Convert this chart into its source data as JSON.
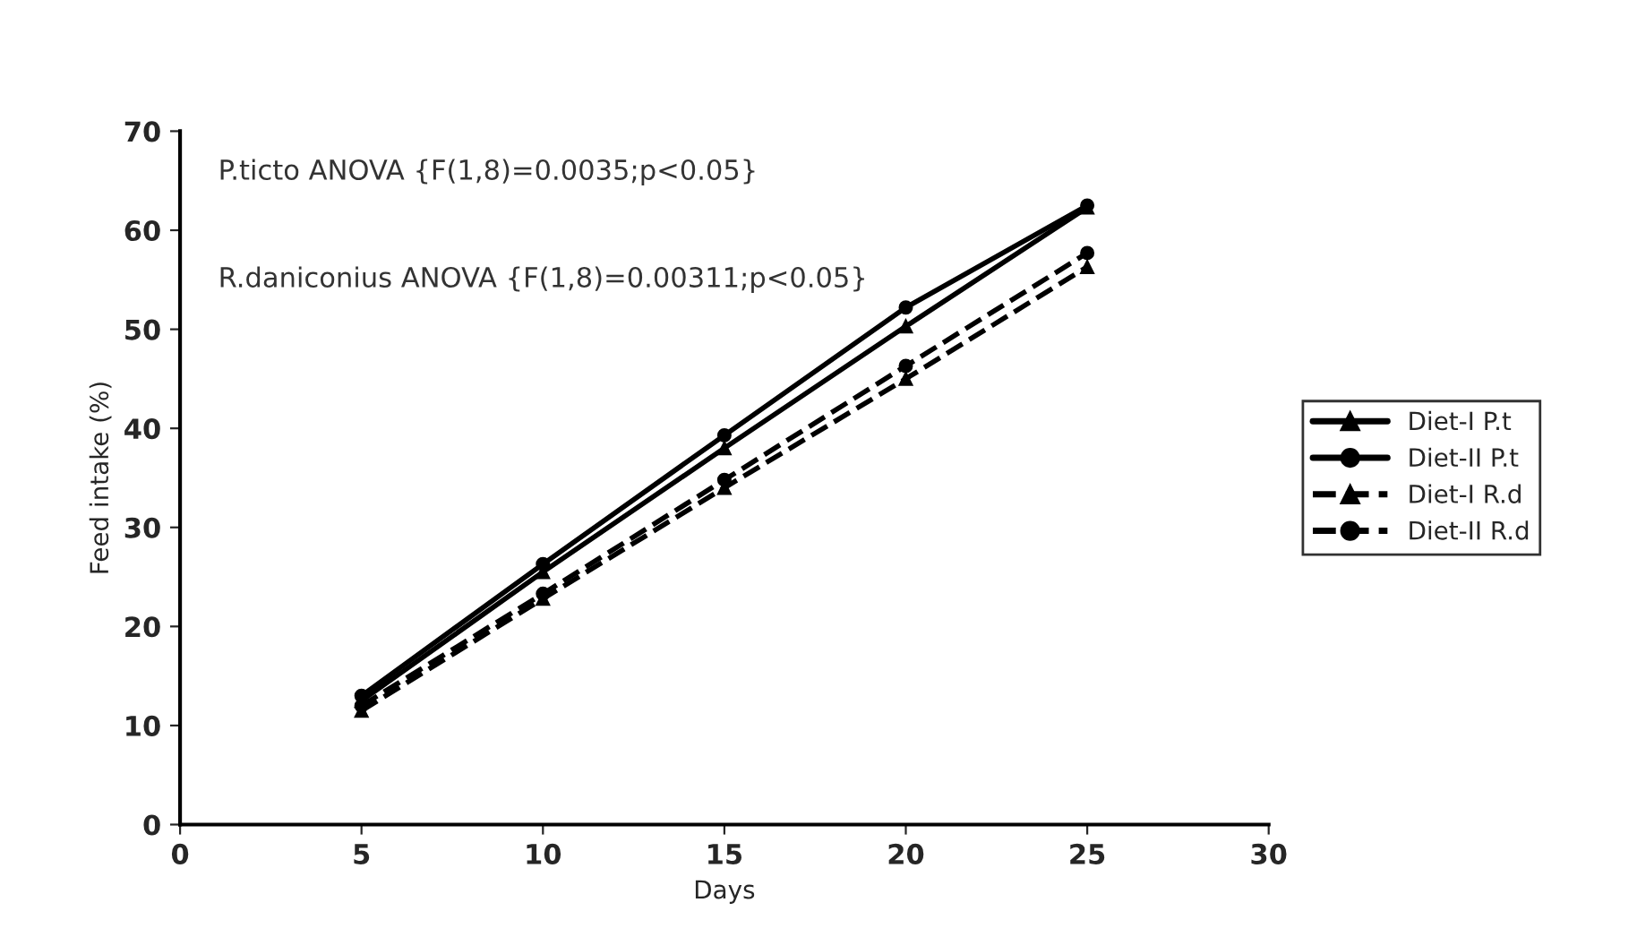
{
  "chart_data": {
    "type": "line",
    "xlabel": "Days",
    "ylabel": "Feed intake (%)",
    "x": [
      5,
      10,
      15,
      20,
      25
    ],
    "series": [
      {
        "name": "Diet-I P.t",
        "color": "#000000",
        "marker": "triangle",
        "line_style": "solid",
        "values": [
          12.5,
          25.5,
          38,
          50.3,
          62.3
        ]
      },
      {
        "name": "Diet-II P.t",
        "color": "#000000",
        "marker": "circle",
        "line_style": "solid",
        "values": [
          13,
          26.3,
          39.3,
          52.2,
          62.5
        ]
      },
      {
        "name": "Diet-I R.d",
        "color": "#000000",
        "marker": "triangle",
        "line_style": "dashed",
        "values": [
          11.5,
          22.8,
          34,
          45,
          56.3
        ]
      },
      {
        "name": "Diet-II R.d",
        "color": "#000000",
        "marker": "circle",
        "line_style": "dashed",
        "values": [
          12,
          23.3,
          34.8,
          46.3,
          57.7
        ]
      }
    ],
    "annotations": [
      "P.ticto ANOVA {F(1,8)=0.0035;p<0.05}",
      "R.daniconius ANOVA {F(1,8)=0.00311;p<0.05}"
    ],
    "xlim": [
      0,
      30
    ],
    "xticks": [
      0,
      5,
      10,
      15,
      20,
      25,
      30
    ],
    "ylim": [
      0,
      70
    ],
    "yticks": [
      0,
      10,
      20,
      30,
      40,
      50,
      60,
      70
    ],
    "grid": false,
    "legend": "right"
  }
}
